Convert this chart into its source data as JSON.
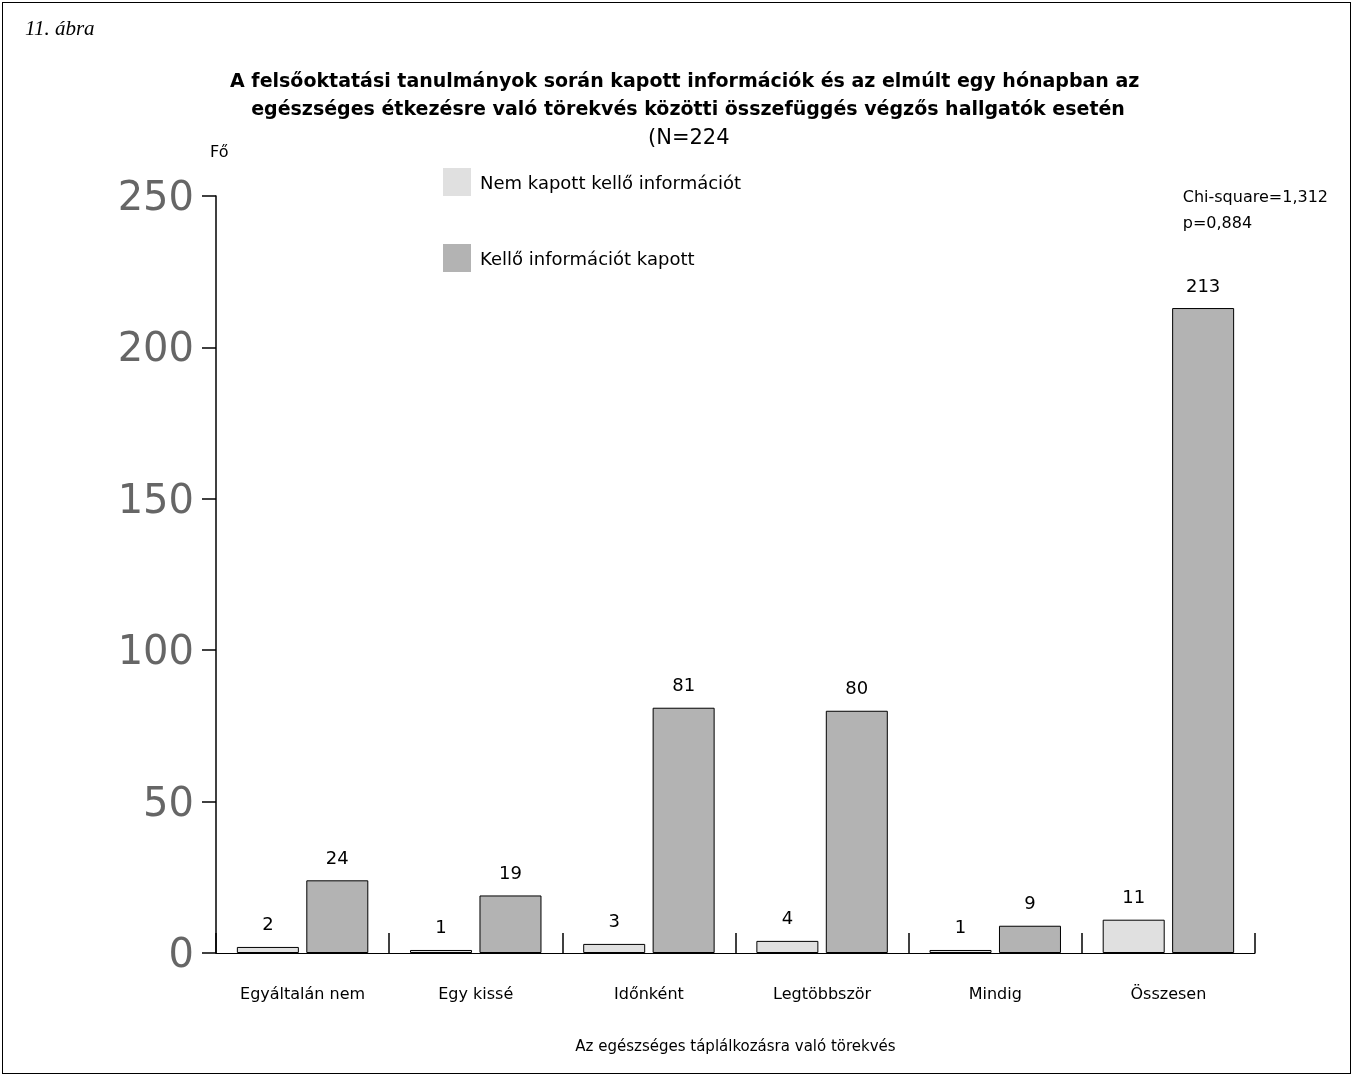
{
  "chart_data": {
    "type": "bar",
    "title": "A felsőoktatási tanulmányok során kapott információk és az elmúlt egy hónapban az egészséges étkezésre való törekvés közötti összefüggés végzős hallgatók esetén",
    "subtitle": "(N=224",
    "xlabel": "Az egészséges táplálkozásra való törekvés",
    "ylabel": "Fő",
    "annotations": [
      "11. ábra",
      "Chi-square=1,312\np=0,884"
    ],
    "categories": [
      "Egyáltalán nem",
      "Egy kissé",
      "Időnként",
      "Legtöbbször",
      "Mindig",
      "Összesen"
    ],
    "series": [
      {
        "name": "Nem kapott kellő információt",
        "color": "#e0e0e0",
        "values": [
          2,
          1,
          3,
          4,
          1,
          11
        ]
      },
      {
        "name": "Kellő információt kapott",
        "color": "#b3b3b3",
        "values": [
          24,
          19,
          81,
          80,
          9,
          213
        ]
      }
    ],
    "ylim": [
      0,
      250
    ],
    "yticks": [
      0,
      50,
      100,
      150,
      200,
      250
    ],
    "grid": false,
    "legend": "top left",
    "data_labels": true
  }
}
